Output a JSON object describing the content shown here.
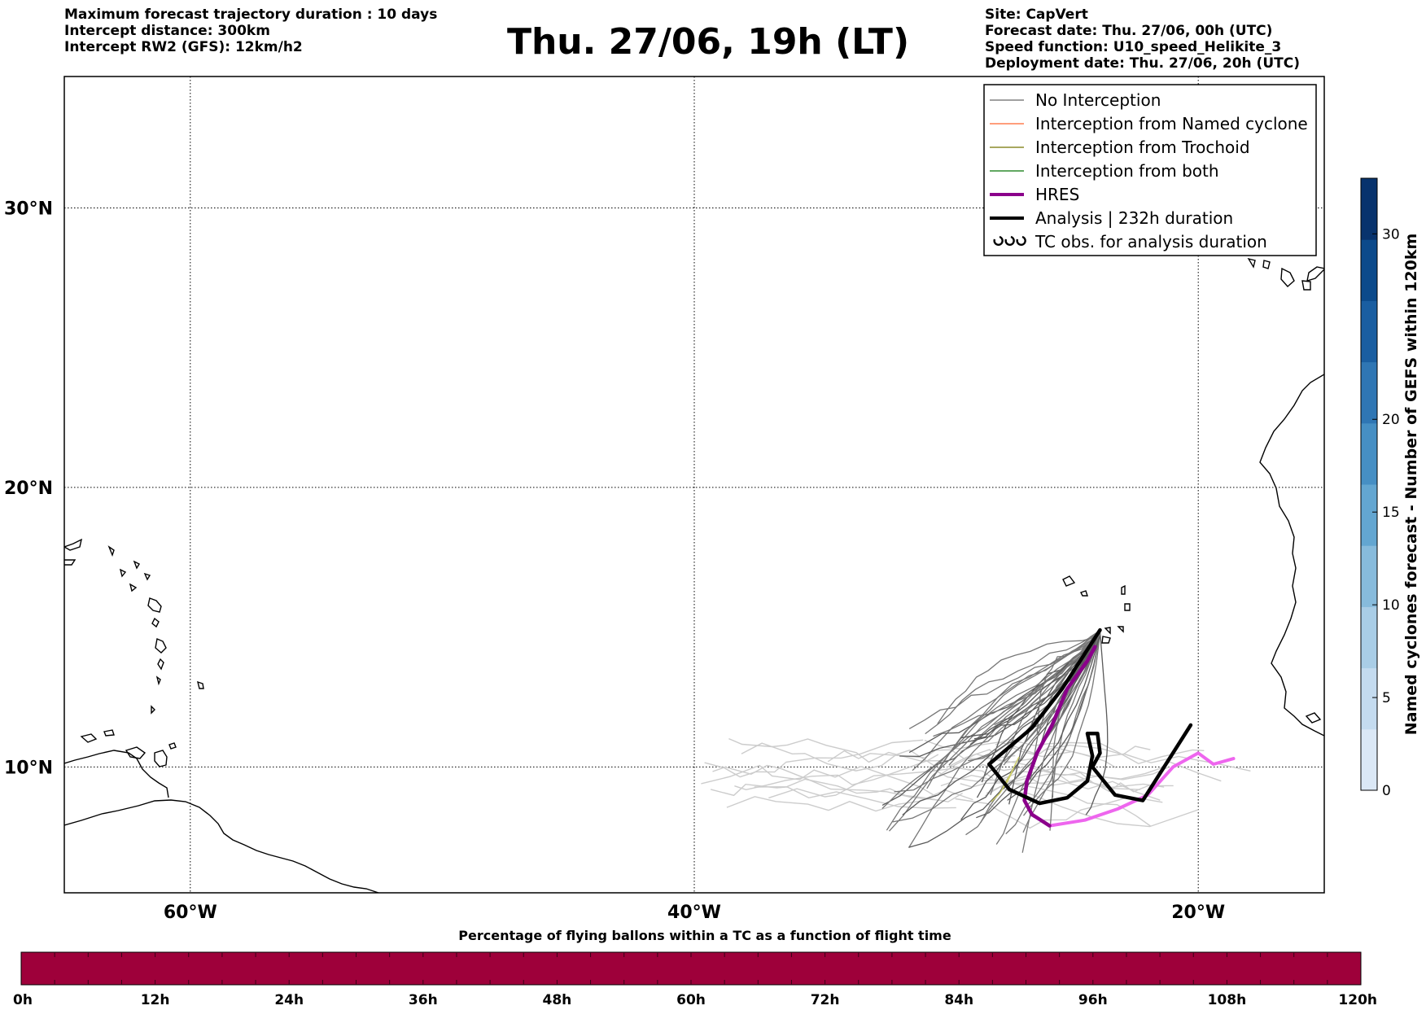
{
  "header_left": [
    "Maximum forecast trajectory duration : 10 days",
    "Intercept distance: 300km",
    "Intercept RW2 (GFS):  12km/h2"
  ],
  "title": "Thu. 27/06, 19h (LT)",
  "header_right": [
    "Site: CapVert",
    "Forecast date: Thu. 27/06, 00h (UTC)",
    "Speed function: U10_speed_Helikite_3",
    "Deployment date: Thu. 27/06, 20h (UTC)"
  ],
  "map": {
    "lon_range": [
      -65,
      -15
    ],
    "lat_range": [
      5.5,
      34.7
    ],
    "lat_ticks": [
      {
        "value": 30,
        "label": "30°N"
      },
      {
        "value": 20,
        "label": "20°N"
      },
      {
        "value": 10,
        "label": "10°N"
      }
    ],
    "lon_ticks": [
      {
        "value": -60,
        "label": "60°W"
      },
      {
        "value": -40,
        "label": "40°W"
      },
      {
        "value": -20,
        "label": "20°W"
      }
    ],
    "grid": true
  },
  "legend": {
    "placement": "top-right",
    "items": [
      {
        "label": "No Interception",
        "color": "#808080",
        "style": "thin"
      },
      {
        "label": "Interception from Named cyclone",
        "color": "#ff7f50",
        "style": "thin"
      },
      {
        "label": "Interception from Trochoid",
        "color": "#8b8b2a",
        "style": "thin"
      },
      {
        "label": "Interception from both",
        "color": "#2e8b2e",
        "style": "thin"
      },
      {
        "label": "HRES",
        "color": "#8b008b",
        "style": "thick"
      },
      {
        "label": "Analysis | 232h duration",
        "color": "#000000",
        "style": "thick"
      },
      {
        "label": "TC obs. for analysis duration",
        "color": "#000000",
        "style": "tc-symbol"
      }
    ]
  },
  "colorbar_right": {
    "label": "Named cyclones forecast - Number of GEFS within 120km",
    "range": [
      0,
      33
    ],
    "ticks": [
      0,
      5,
      10,
      15,
      20,
      30
    ],
    "colors": [
      "#dbe8f6",
      "#c4dbef",
      "#a9cde6",
      "#87bbdc",
      "#63a6d1",
      "#468fc4",
      "#2f76b4",
      "#1a5ea1",
      "#0c4a8b",
      "#08336d"
    ]
  },
  "colorbar_bottom": {
    "title": "Percentage of flying ballons within a TC as a function of flight time",
    "tick_labels": [
      "0h",
      "12h",
      "24h",
      "36h",
      "48h",
      "60h",
      "72h",
      "84h",
      "96h",
      "108h",
      "120h"
    ],
    "color": "#9e003a"
  },
  "trajectories": {
    "analysis": {
      "color": "#000000",
      "points": [
        [
          -23.9,
          14.9
        ],
        [
          -24.4,
          14.2
        ],
        [
          -25.4,
          12.8
        ],
        [
          -26.6,
          11.4
        ],
        [
          -28.3,
          10.1
        ],
        [
          -27.5,
          9.2
        ],
        [
          -26.3,
          8.7
        ],
        [
          -25.2,
          8.9
        ],
        [
          -24.4,
          9.5
        ],
        [
          -24.2,
          10.4
        ],
        [
          -24.4,
          11.2
        ],
        [
          -24.0,
          11.2
        ],
        [
          -23.9,
          10.5
        ],
        [
          -24.2,
          10.0
        ],
        [
          -23.3,
          9.0
        ],
        [
          -22.2,
          8.8
        ],
        [
          -20.3,
          11.5
        ]
      ]
    },
    "hres_dark": {
      "color": "#8b008b",
      "points": [
        [
          -24.1,
          14.3
        ],
        [
          -24.4,
          13.8
        ],
        [
          -25.2,
          12.8
        ],
        [
          -25.8,
          11.5
        ],
        [
          -26.4,
          10.5
        ],
        [
          -26.8,
          9.5
        ],
        [
          -26.9,
          8.8
        ],
        [
          -26.6,
          8.3
        ],
        [
          -25.9,
          7.9
        ]
      ]
    },
    "hres_light": {
      "color": "#ee66ee",
      "points": [
        [
          -25.9,
          7.9
        ],
        [
          -24.5,
          8.1
        ],
        [
          -23.2,
          8.5
        ],
        [
          -22.0,
          9.0
        ],
        [
          -21.0,
          10.0
        ],
        [
          -20.0,
          10.5
        ],
        [
          -19.4,
          10.1
        ],
        [
          -18.6,
          10.3
        ]
      ]
    }
  }
}
